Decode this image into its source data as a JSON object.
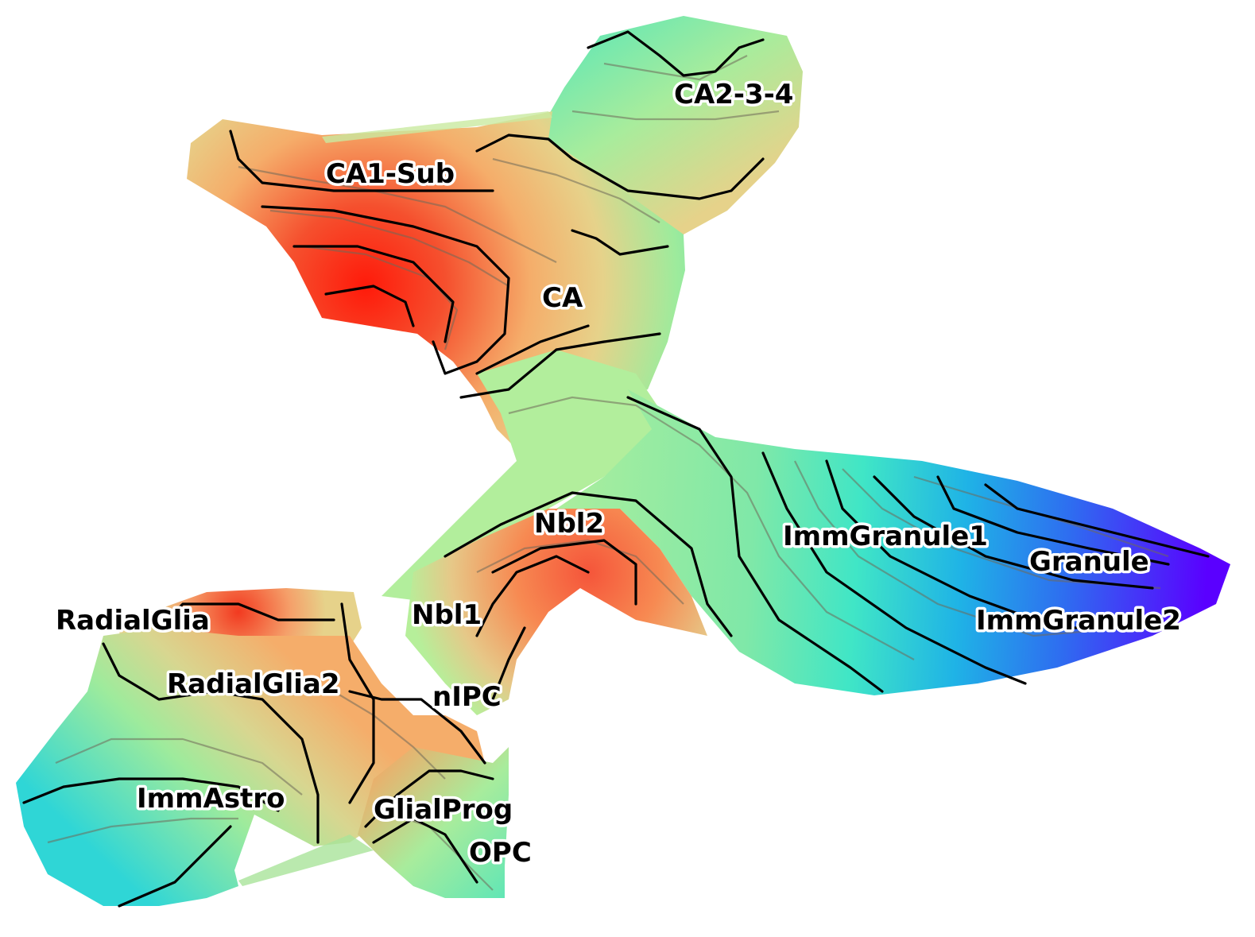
{
  "chart_data": {
    "type": "contour",
    "title": "",
    "xlabel": "",
    "ylabel": "",
    "grid": false,
    "legend": "none",
    "colormap": "rainbow",
    "colormap_stops": [
      "#5a00ff",
      "#2e6df0",
      "#1fb3e6",
      "#40e6c6",
      "#7fe8a8",
      "#b6ef9a",
      "#e6d28a",
      "#f5ad6a",
      "#f78450",
      "#f24b2a",
      "#ff1a0a"
    ],
    "labels": [
      {
        "text": "CA2-3-4",
        "value": 0.45
      },
      {
        "text": "CA1-Sub",
        "value": 0.7
      },
      {
        "text": "CA",
        "value": 0.75
      },
      {
        "text": "Nbl2",
        "value": 0.55
      },
      {
        "text": "Nbl1",
        "value": 0.7
      },
      {
        "text": "RadialGlia",
        "value": 0.85
      },
      {
        "text": "RadialGlia2",
        "value": 0.6
      },
      {
        "text": "nIPC",
        "value": 0.75
      },
      {
        "text": "ImmAstro",
        "value": 0.3
      },
      {
        "text": "GlialProg",
        "value": 0.55
      },
      {
        "text": "OPC",
        "value": 0.4
      },
      {
        "text": "ImmGranule1",
        "value": 0.3
      },
      {
        "text": "Granule",
        "value": 0.05
      },
      {
        "text": "ImmGranule2",
        "value": 0.15
      }
    ]
  }
}
